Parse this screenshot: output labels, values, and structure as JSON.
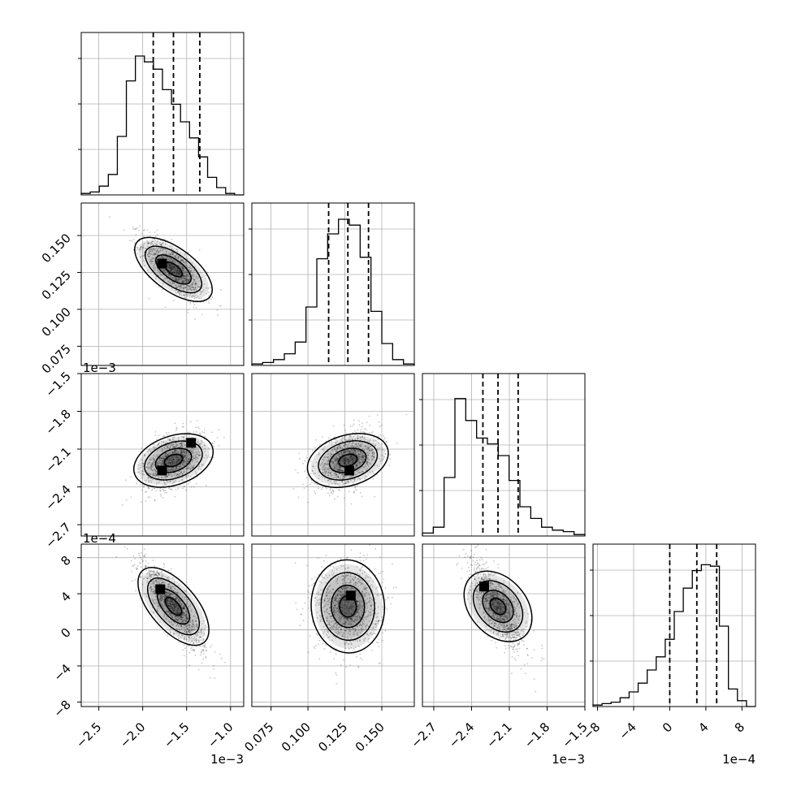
{
  "chart_data": {
    "type": "corner",
    "parameters": [
      {
        "range": [
          -0.0027,
          -0.00085
        ],
        "ticks": [
          -2.5,
          -2.0,
          -1.5,
          -1.0
        ],
        "tick_labels": [
          "−2.5",
          "−2.0",
          "−1.5",
          "−1.0"
        ],
        "scale_label": "1e−3",
        "quantiles": [
          -0.00188,
          -0.00165,
          -0.00135
        ],
        "hist": [
          0.01,
          0.02,
          0.06,
          0.14,
          0.4,
          0.78,
          0.95,
          0.91,
          0.86,
          0.72,
          0.62,
          0.5,
          0.39,
          0.26,
          0.12,
          0.05,
          0.01,
          0.0
        ]
      },
      {
        "range": [
          0.062,
          0.172
        ],
        "ticks": [
          0.075,
          0.1,
          0.125,
          0.15
        ],
        "tick_labels": [
          "0.075",
          "0.100",
          "0.125",
          "0.150"
        ],
        "scale_label": "",
        "quantiles": [
          0.114,
          0.127,
          0.141
        ],
        "hist": [
          0.01,
          0.02,
          0.04,
          0.08,
          0.16,
          0.4,
          0.73,
          0.9,
          1.0,
          0.96,
          0.74,
          0.37,
          0.15,
          0.04,
          0.01
        ]
      },
      {
        "range": [
          -0.00279,
          -0.0015
        ],
        "ticks": [
          -2.7,
          -2.4,
          -2.1,
          -1.8,
          -1.5
        ],
        "tick_labels": [
          "−2.7",
          "−2.4",
          "−2.1",
          "−1.8",
          "−1.5"
        ],
        "scale_label": "1e−3",
        "quantiles": [
          -0.00231,
          -0.00219,
          -0.00203
        ],
        "hist": [
          0.02,
          0.06,
          0.4,
          0.94,
          0.79,
          0.67,
          0.63,
          0.55,
          0.38,
          0.2,
          0.12,
          0.06,
          0.04,
          0.03,
          0.01
        ]
      },
      {
        "range": [
          -0.00085,
          0.00095
        ],
        "ticks": [
          -8,
          -4,
          0,
          4,
          8
        ],
        "tick_labels": [
          "−8",
          "−4",
          "0",
          "4",
          "8"
        ],
        "scale_label": "1e−4",
        "quantiles": [
          0.0,
          0.0003,
          0.00052
        ],
        "hist": [
          0.01,
          0.02,
          0.03,
          0.06,
          0.1,
          0.16,
          0.25,
          0.34,
          0.46,
          0.65,
          0.81,
          0.93,
          0.97,
          0.96,
          0.55,
          0.12,
          0.04,
          0.0
        ]
      }
    ],
    "pairs": [
      {
        "row": 1,
        "col": 0,
        "mean": [
          -0.00165,
          0.127
        ],
        "sd": [
          0.00018,
          0.011
        ],
        "rho": -0.72,
        "peaks": [
          [
            -0.00178,
            0.131
          ]
        ]
      },
      {
        "row": 2,
        "col": 0,
        "mean": [
          -0.00165,
          -0.00219
        ],
        "sd": [
          0.00018,
          0.00011
        ],
        "rho": 0.4,
        "peaks": [
          [
            -0.00178,
            -0.00227
          ],
          [
            -0.00145,
            -0.00205
          ]
        ]
      },
      {
        "row": 2,
        "col": 1,
        "mean": [
          0.127,
          -0.00219
        ],
        "sd": [
          0.011,
          0.00011
        ],
        "rho": 0.35,
        "peaks": [
          [
            0.128,
            -0.00227
          ]
        ]
      },
      {
        "row": 3,
        "col": 0,
        "mean": [
          -0.00165,
          0.00026
        ],
        "sd": [
          0.00018,
          0.00024
        ],
        "rho": -0.85,
        "peaks": [
          [
            -0.0018,
            0.00045
          ]
        ]
      },
      {
        "row": 3,
        "col": 1,
        "mean": [
          0.127,
          0.00026
        ],
        "sd": [
          0.011,
          0.00024
        ],
        "rho": 0.05,
        "peaks": [
          [
            0.129,
            0.00038
          ]
        ]
      },
      {
        "row": 3,
        "col": 2,
        "mean": [
          -0.00219,
          0.00026
        ],
        "sd": [
          0.00011,
          0.00024
        ],
        "rho": -0.72,
        "peaks": [
          [
            -0.0023,
            0.00048
          ]
        ]
      }
    ],
    "grid": true,
    "colors": {
      "line": "#000000",
      "points": "#000000",
      "grid": "#b0b0b0"
    }
  }
}
